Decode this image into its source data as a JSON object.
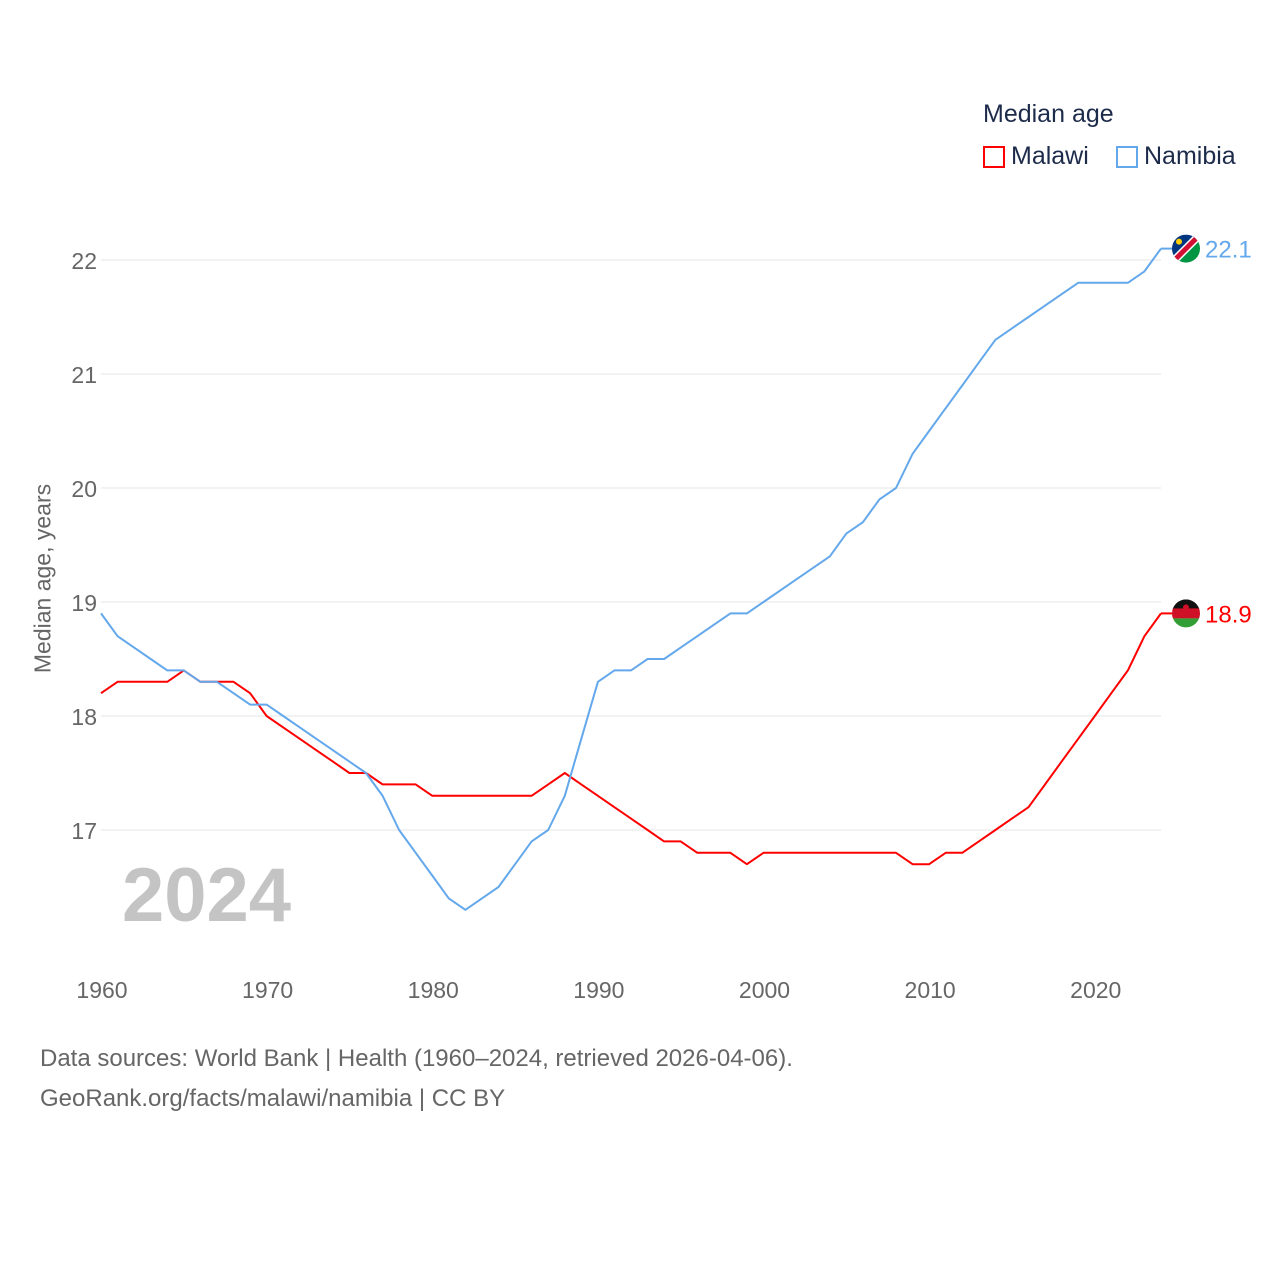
{
  "chart_data": {
    "type": "line",
    "title": "Median age",
    "ylabel": "Median age, years",
    "xlabel": "",
    "x": [
      1960,
      1961,
      1962,
      1963,
      1964,
      1965,
      1966,
      1967,
      1968,
      1969,
      1970,
      1971,
      1972,
      1973,
      1974,
      1975,
      1976,
      1977,
      1978,
      1979,
      1980,
      1981,
      1982,
      1983,
      1984,
      1985,
      1986,
      1987,
      1988,
      1989,
      1990,
      1991,
      1992,
      1993,
      1994,
      1995,
      1996,
      1997,
      1998,
      1999,
      2000,
      2001,
      2002,
      2003,
      2004,
      2005,
      2006,
      2007,
      2008,
      2009,
      2010,
      2011,
      2012,
      2013,
      2014,
      2015,
      2016,
      2017,
      2018,
      2019,
      2020,
      2021,
      2022,
      2023,
      2024
    ],
    "xlim": [
      1960,
      2024
    ],
    "ylim": [
      16,
      22.4
    ],
    "xticks": [
      "1960",
      "1970",
      "1980",
      "1990",
      "2000",
      "2010",
      "2020"
    ],
    "yticks": [
      "17",
      "18",
      "19",
      "20",
      "21",
      "22"
    ],
    "grid": true,
    "legend_placement": "top-right",
    "series": [
      {
        "name": "Malawi",
        "color": "#ff0000",
        "end_label": "18.9",
        "values": [
          18.2,
          18.3,
          18.3,
          18.3,
          18.3,
          18.4,
          18.3,
          18.3,
          18.3,
          18.2,
          18.0,
          17.9,
          17.8,
          17.7,
          17.6,
          17.5,
          17.5,
          17.4,
          17.4,
          17.4,
          17.3,
          17.3,
          17.3,
          17.3,
          17.3,
          17.3,
          17.3,
          17.4,
          17.5,
          17.4,
          17.3,
          17.2,
          17.1,
          17.0,
          16.9,
          16.9,
          16.8,
          16.8,
          16.8,
          16.7,
          16.8,
          16.8,
          16.8,
          16.8,
          16.8,
          16.8,
          16.8,
          16.8,
          16.8,
          16.7,
          16.7,
          16.8,
          16.8,
          16.9,
          17.0,
          17.1,
          17.2,
          17.4,
          17.6,
          17.8,
          18.0,
          18.2,
          18.4,
          18.7,
          18.9
        ]
      },
      {
        "name": "Namibia",
        "color": "#64a8ec",
        "end_label": "22.1",
        "values": [
          18.9,
          18.7,
          18.6,
          18.5,
          18.4,
          18.4,
          18.3,
          18.3,
          18.2,
          18.1,
          18.1,
          18.0,
          17.9,
          17.8,
          17.7,
          17.6,
          17.5,
          17.3,
          17.0,
          16.8,
          16.6,
          16.4,
          16.3,
          16.4,
          16.5,
          16.7,
          16.9,
          17.0,
          17.3,
          17.8,
          18.3,
          18.4,
          18.4,
          18.5,
          18.5,
          18.6,
          18.7,
          18.8,
          18.9,
          18.9,
          19.0,
          19.1,
          19.2,
          19.3,
          19.4,
          19.6,
          19.7,
          19.9,
          20.0,
          20.3,
          20.5,
          20.7,
          20.9,
          21.1,
          21.3,
          21.4,
          21.5,
          21.6,
          21.7,
          21.8,
          21.8,
          21.8,
          21.8,
          21.9,
          22.1
        ]
      }
    ],
    "annotations": {
      "year_stamp": "2024"
    }
  },
  "source": {
    "line1": "Data sources: World Bank | Health (1960–2024, retrieved 2026-04-06).",
    "line2": "GeoRank.org/facts/malawi/namibia | CC BY"
  }
}
